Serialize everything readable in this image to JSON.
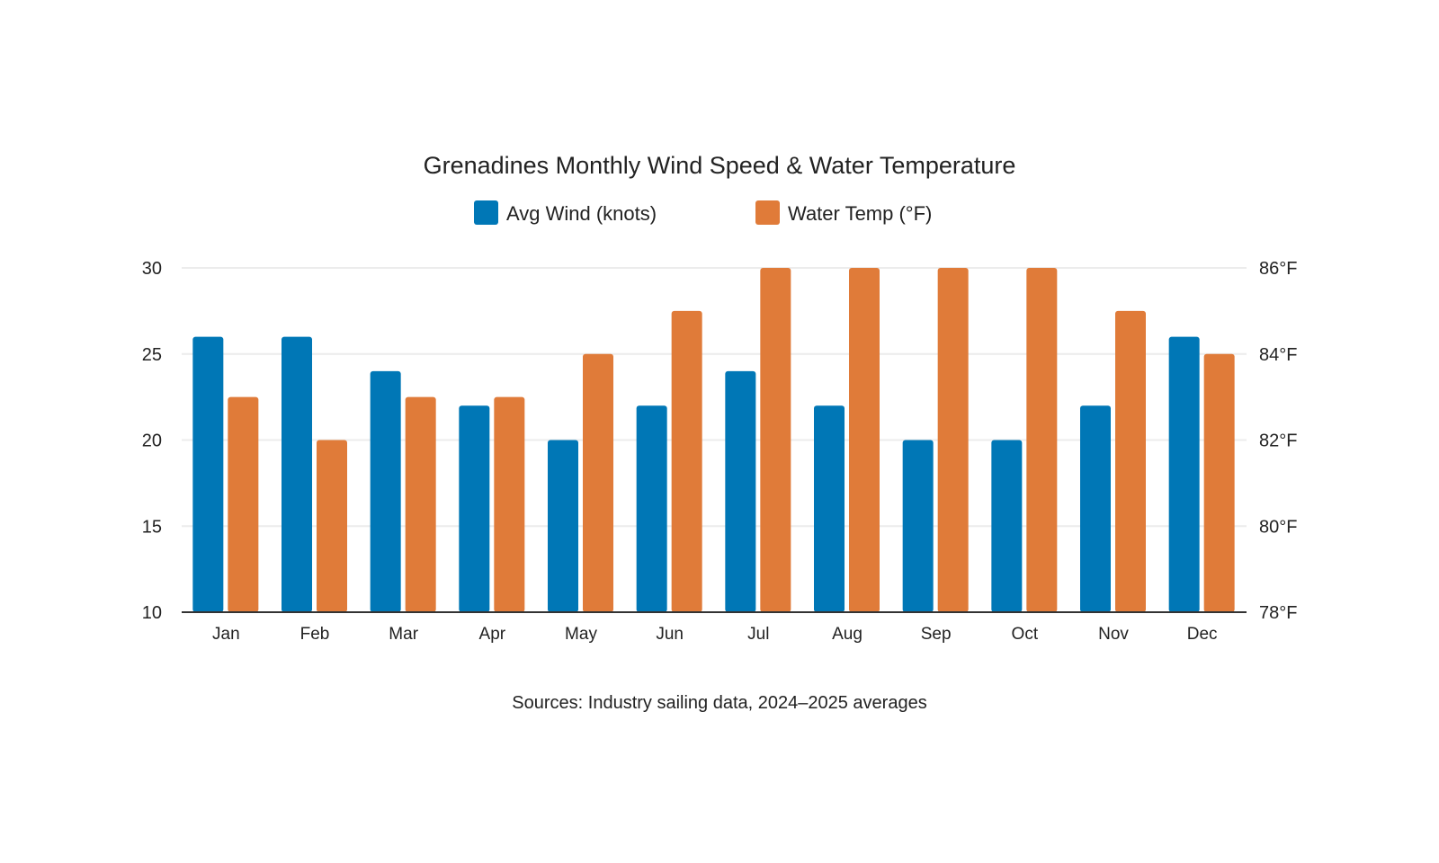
{
  "chart_data": {
    "type": "bar",
    "title": "Grenadines Monthly Wind Speed & Water Temperature",
    "source": "Sources: Industry sailing data, 2024–2025 averages",
    "categories": [
      "Jan",
      "Feb",
      "Mar",
      "Apr",
      "May",
      "Jun",
      "Jul",
      "Aug",
      "Sep",
      "Oct",
      "Nov",
      "Dec"
    ],
    "series": [
      {
        "name": "Avg Wind (knots)",
        "axis": "left",
        "color": "#0077B6",
        "values": [
          26,
          26,
          24,
          22,
          20,
          22,
          24,
          22,
          20,
          20,
          22,
          26
        ]
      },
      {
        "name": "Water Temp (°F)",
        "axis": "right",
        "color": "#E07B39",
        "values": [
          83,
          82,
          83,
          83,
          84,
          85,
          86,
          86,
          86,
          86,
          85,
          84
        ]
      }
    ],
    "y_left": {
      "min": 10,
      "max": 30,
      "ticks": [
        "10",
        "15",
        "20",
        "25",
        "30"
      ]
    },
    "y_right": {
      "min": 78,
      "max": 86,
      "ticks": [
        "78°F",
        "80°F",
        "82°F",
        "84°F",
        "86°F"
      ]
    },
    "grid": true,
    "legend": "top"
  }
}
